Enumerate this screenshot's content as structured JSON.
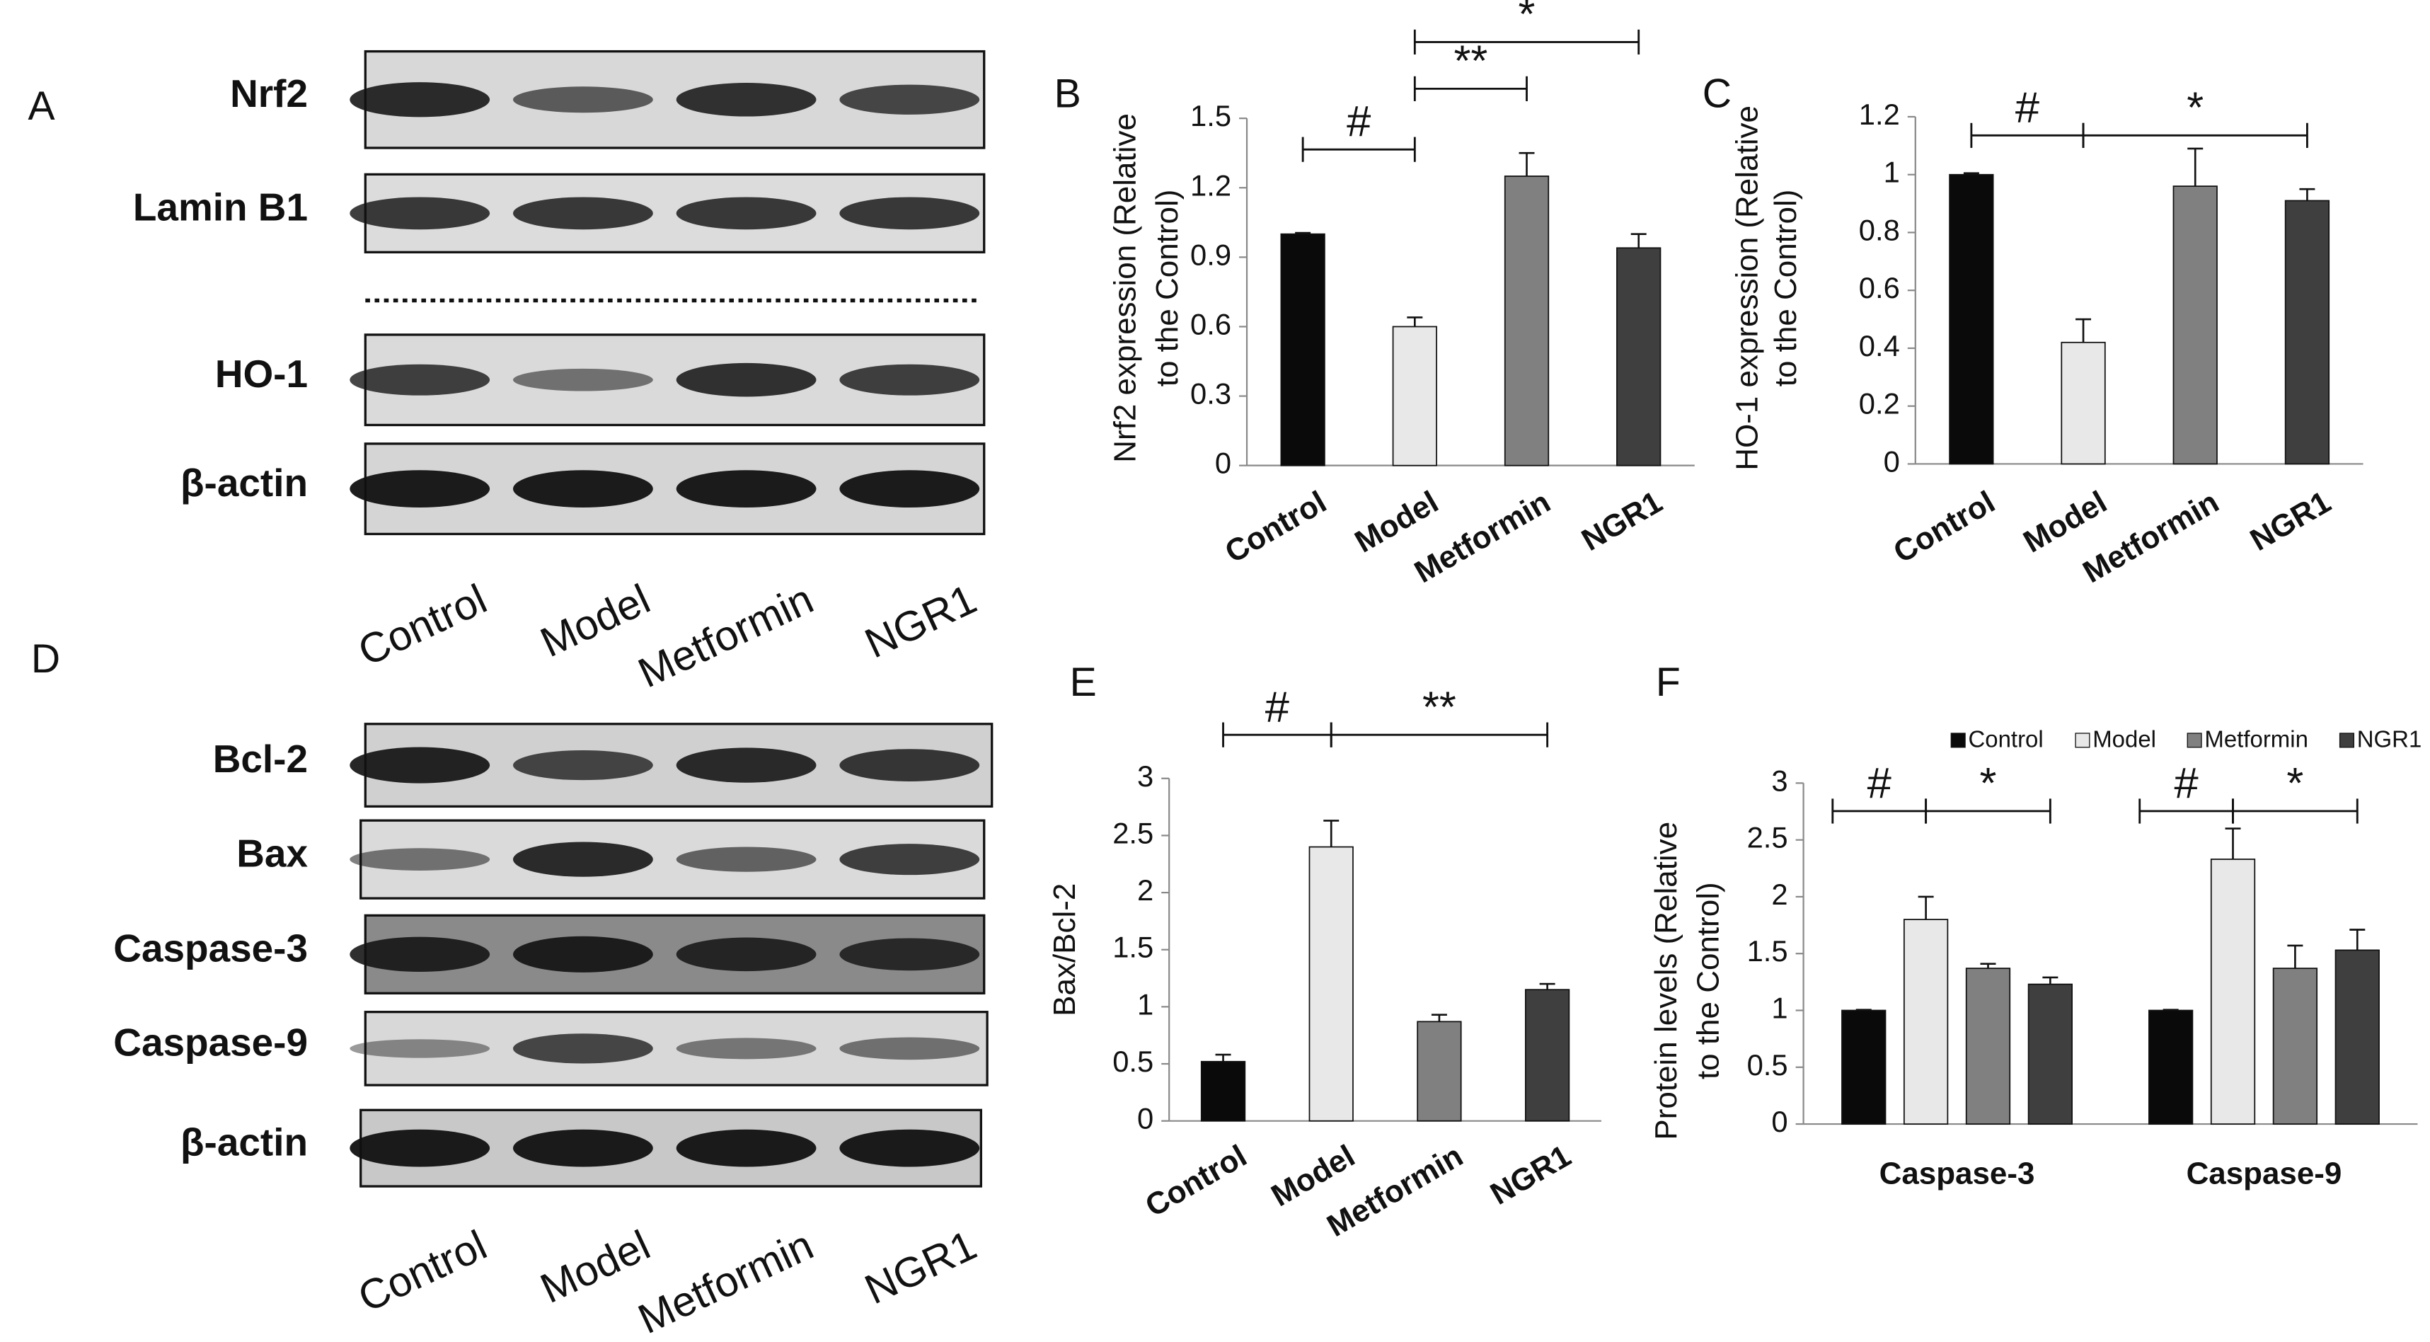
{
  "blots": [
    {
      "label": "A",
      "rows": [
        "Nrf2",
        "Lamin B1",
        "HO-1",
        "β-actin"
      ],
      "lanes": [
        "Control",
        "Model",
        "Metformin",
        "NGR1"
      ]
    },
    {
      "label": "D",
      "rows": [
        "Bcl-2",
        "Bax",
        "Caspase-3",
        "Caspase-9",
        "β-actin"
      ],
      "lanes": [
        "Control",
        "Model",
        "Metformin",
        "NGR1"
      ]
    }
  ],
  "chart_data": [
    {
      "type": "bar",
      "label": "B",
      "ylabel": [
        "Nrf2 expression (Relative",
        "to the Control)"
      ],
      "categories": [
        "Control",
        "Model",
        "Metformin",
        "NGR1"
      ],
      "values": [
        1,
        0.6,
        1.25,
        0.94
      ],
      "errors": [
        0.005,
        0.04,
        0.1,
        0.06
      ],
      "colors": [
        "#0a0a0a",
        "#e8e8e8",
        "#808080",
        "#3f3f3f"
      ],
      "ylim": [
        0,
        1.5
      ],
      "yticks": [
        0,
        0.3,
        0.6,
        0.9,
        1.2,
        1.5
      ],
      "annotations": [
        "#",
        "**",
        "*"
      ]
    },
    {
      "type": "bar",
      "label": "C",
      "ylabel": [
        "HO-1 expression (Relative",
        "to the Control)"
      ],
      "categories": [
        "Control",
        "Model",
        "Metformin",
        "NGR1"
      ],
      "values": [
        1,
        0.42,
        0.96,
        0.91
      ],
      "errors": [
        0.005,
        0.08,
        0.13,
        0.04
      ],
      "colors": [
        "#0a0a0a",
        "#e8e8e8",
        "#808080",
        "#3f3f3f"
      ],
      "ylim": [
        0,
        1.2
      ],
      "yticks": [
        0,
        0.2,
        0.4,
        0.6,
        0.8,
        1,
        1.2
      ],
      "annotations": [
        "#",
        "*"
      ]
    },
    {
      "type": "bar",
      "label": "E",
      "ylabel": [
        "Bax/Bcl-2"
      ],
      "categories": [
        "Control",
        "Model",
        "Metformin",
        "NGR1"
      ],
      "values": [
        0.52,
        2.4,
        0.87,
        1.15
      ],
      "errors": [
        0.06,
        0.23,
        0.06,
        0.05
      ],
      "colors": [
        "#0a0a0a",
        "#e8e8e8",
        "#808080",
        "#3f3f3f"
      ],
      "ylim": [
        0,
        3
      ],
      "yticks": [
        0,
        0.5,
        1,
        1.5,
        2,
        2.5,
        3
      ],
      "annotations": [
        "#",
        "**"
      ]
    },
    {
      "type": "grouped_bar",
      "label": "F",
      "ylabel": [
        "Protein levels (Relative",
        "to the Control)"
      ],
      "categories": [
        "Caspase-3",
        "Caspase-9"
      ],
      "series": [
        {
          "name": "Control",
          "color": "#0a0a0a",
          "values": [
            1,
            1
          ],
          "errors": [
            0.005,
            0.005
          ]
        },
        {
          "name": "Model",
          "color": "#e8e8e8",
          "values": [
            1.8,
            2.33
          ],
          "errors": [
            0.2,
            0.27
          ]
        },
        {
          "name": "Metformin",
          "color": "#808080",
          "values": [
            1.37,
            1.37
          ],
          "errors": [
            0.04,
            0.2
          ]
        },
        {
          "name": "NGR1",
          "color": "#3f3f3f",
          "values": [
            1.23,
            1.53
          ],
          "errors": [
            0.06,
            0.18
          ]
        }
      ],
      "ylim": [
        0,
        3
      ],
      "yticks": [
        0,
        0.5,
        1,
        1.5,
        2,
        2.5,
        3
      ],
      "annotations": [
        "#",
        "*"
      ]
    }
  ]
}
